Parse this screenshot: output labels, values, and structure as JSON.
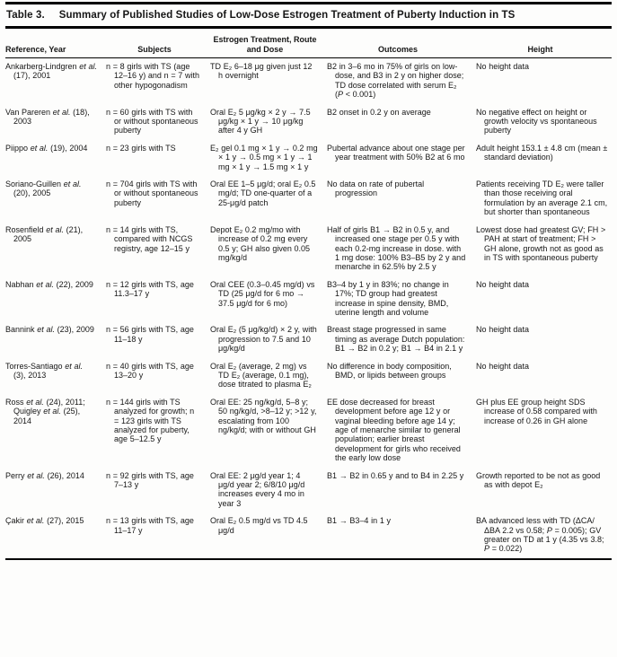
{
  "title": {
    "label": "Table 3.",
    "text": "Summary of Published Studies of Low-Dose Estrogen Treatment of Puberty Induction in TS"
  },
  "columns": [
    "Reference, Year",
    "Subjects",
    "Estrogen Treatment, Route and Dose",
    "Outcomes",
    "Height"
  ],
  "rows": [
    {
      "ref": "Ankarberg-Lindgren et al. (17), 2001",
      "subjects": "n = 8 girls with TS (age 12–16 y) and n = 7 with other hypogonadism",
      "treatment": "TD E₂ 6–18 μg given just 12 h overnight",
      "outcomes": "B2 in 3–6 mo in 75% of girls on low-dose, and B3 in 2 y on higher dose; TD dose correlated with serum E₂ (P < 0.001)",
      "height": "No height data"
    },
    {
      "ref": "Van Pareren et al. (18), 2003",
      "subjects": "n = 60 girls with TS with or without spontaneous puberty",
      "treatment": "Oral E₂ 5 μg/kg × 2 y → 7.5 μg/kg × 1 y → 10 μg/kg after 4 y GH",
      "outcomes": "B2 onset in 0.2 y on average",
      "height": "No negative effect on height or growth velocity vs spontaneous puberty"
    },
    {
      "ref": "Piippo et al. (19), 2004",
      "subjects": "n = 23 girls with TS",
      "treatment": "E₂ gel 0.1 mg × 1 y → 0.2 mg × 1 y → 0.5 mg × 1 y → 1 mg × 1 y → 1.5 mg × 1 y",
      "outcomes": "Pubertal advance about one stage per year treatment with 50% B2 at 6 mo",
      "height": "Adult height 153.1 ± 4.8 cm (mean ± standard deviation)"
    },
    {
      "ref": "Soriano-Guillen et al. (20), 2005",
      "subjects": "n = 704 girls with TS with or without spontaneous puberty",
      "treatment": "Oral EE 1–5 μg/d; oral E₂ 0.5 mg/d; TD one-quarter of a 25-μg/d patch",
      "outcomes": "No data on rate of pubertal progression",
      "height": "Patients receiving TD E₂ were taller than those receiving oral formulation by an average 2.1 cm, but shorter than spontaneous"
    },
    {
      "ref": "Rosenfield et al. (21), 2005",
      "subjects": "n = 14 girls with TS, compared with NCGS registry, age 12–15 y",
      "treatment": "Depot E₂ 0.2 mg/mo with increase of 0.2 mg every 0.5 y; GH also given 0.05 mg/kg/d",
      "outcomes": "Half of girls B1 → B2 in 0.5 y, and increased one stage per 0.5 y with each 0.2-mg increase in dose. with 1 mg dose: 100% B3–B5 by 2 y and menarche in 62.5% by 2.5 y",
      "height": "Lowest dose had greatest GV; FH > PAH at start of treatment; FH > GH alone, growth not as good as in TS with spontaneous puberty"
    },
    {
      "ref": "Nabhan et al. (22), 2009",
      "subjects": "n = 12 girls with TS, age 11.3–17 y",
      "treatment": "Oral CEE (0.3–0.45 mg/d) vs TD (25 μg/d for 6 mo → 37.5 μg/d for 6 mo)",
      "outcomes": "B3–4 by 1 y in 83%; no change in 17%; TD group had greatest increase in spine density, BMD, uterine length and volume",
      "height": "No height data"
    },
    {
      "ref": "Bannink et al. (23), 2009",
      "subjects": "n = 56 girls with TS, age 11–18 y",
      "treatment": "Oral E₂ (5 μg/kg/d) × 2 y, with progression to 7.5 and 10 μg/kg/d",
      "outcomes": "Breast stage progressed in same timing as average Dutch population: B1 → B2 in 0.2 y; B1 → B4 in 2.1 y",
      "height": "No height data"
    },
    {
      "ref": "Torres-Santiago et al. (3), 2013",
      "subjects": "n = 40 girls with TS, age 13–20 y",
      "treatment": "Oral E₂ (average, 2 mg) vs TD E₂ (average, 0.1 mg), dose titrated to plasma E₂",
      "outcomes": "No difference in body composition, BMD, or lipids between groups",
      "height": "No height data"
    },
    {
      "ref": "Ross et al. (24), 2011; Quigley et al. (25), 2014",
      "subjects": "n = 144 girls with TS analyzed for growth; n = 123 girls with TS analyzed for puberty, age 5–12.5 y",
      "treatment": "Oral EE: 25 ng/kg/d, 5–8 y; 50 ng/kg/d, >8–12 y; >12 y, escalating from 100 ng/kg/d; with or without GH",
      "outcomes": "EE dose decreased for breast development before age 12 y or vaginal bleeding before age 14 y; age of menarche similar to general population; earlier breast development for girls who received the early low dose",
      "height": "GH plus EE group height SDS increase of 0.58 compared with increase of 0.26 in GH alone"
    },
    {
      "ref": "Perry et al. (26), 2014",
      "subjects": "n = 92 girls with TS, age 7–13 y",
      "treatment": "Oral EE: 2 μg/d year 1; 4 μg/d year 2; 6/8/10 μg/d increases every 4 mo in year 3",
      "outcomes": "B1 → B2 in 0.65 y and to B4 in 2.25 y",
      "height": "Growth reported to be not as good as with depot E₂"
    },
    {
      "ref": "Çakir et al. (27), 2015",
      "subjects": "n = 13 girls with TS, age 11–17 y",
      "treatment": "Oral E₂ 0.5 mg/d vs TD 4.5 μg/d",
      "outcomes": "B1 → B3–4 in 1 y",
      "height": "BA advanced less with TD (ΔCA/ΔBA 2.2 vs 0.58; P = 0.005); GV greater on TD at 1 y (4.35 vs 3.8; P = 0.022)"
    }
  ]
}
